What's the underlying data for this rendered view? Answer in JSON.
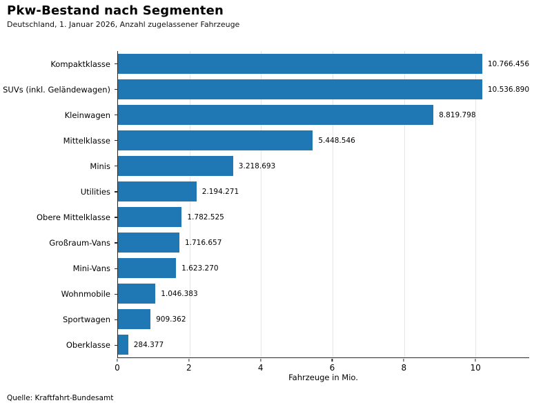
{
  "header": {
    "title": "Pkw-Bestand nach Segmenten",
    "subtitle": "Deutschland, 1. Januar 2026, Anzahl zugelassener Fahrzeuge"
  },
  "footer": {
    "source": "Quelle: Kraftfahrt-Bundesamt"
  },
  "chart_data": {
    "type": "bar",
    "orientation": "horizontal",
    "title": "Pkw-Bestand nach Segmenten",
    "subtitle": "Deutschland, 1. Januar 2026, Anzahl zugelassener Fahrzeuge",
    "categories": [
      "Kompaktklasse",
      "SUVs (inkl. Geländewagen)",
      "Kleinwagen",
      "Mittelklasse",
      "Minis",
      "Utilities",
      "Obere Mittelklasse",
      "Großraum-Vans",
      "Mini-Vans",
      "Wohnmobile",
      "Sportwagen",
      "Oberklasse"
    ],
    "values": [
      10766456,
      10536890,
      8819798,
      5448546,
      3218693,
      2194271,
      1782525,
      1716657,
      1623270,
      1046383,
      909362,
      284377
    ],
    "value_labels": [
      "10.766.456",
      "10.536.890",
      "8.819.798",
      "5.448.546",
      "3.218.693",
      "2.194.271",
      "1.782.525",
      "1.716.657",
      "1.623.270",
      "1.046.383",
      "909.362",
      "284.377"
    ],
    "values_mio": [
      10.766456,
      10.53689,
      8.819798,
      5.448546,
      3.218693,
      2.194271,
      1.782525,
      1.716657,
      1.62327,
      1.046383,
      0.909362,
      0.284377
    ],
    "xlabel": "Fahrzeuge in Mio.",
    "xlim": [
      0,
      11.5
    ],
    "xticks": [
      0,
      2,
      4,
      6,
      8,
      10
    ],
    "bar_color": "#1f77b4",
    "grid": "vertical",
    "grid_color": "#e6e6e6",
    "axis_color": "#262626",
    "legend": "none",
    "source": "Quelle: Kraftfahrt-Bundesamt"
  }
}
